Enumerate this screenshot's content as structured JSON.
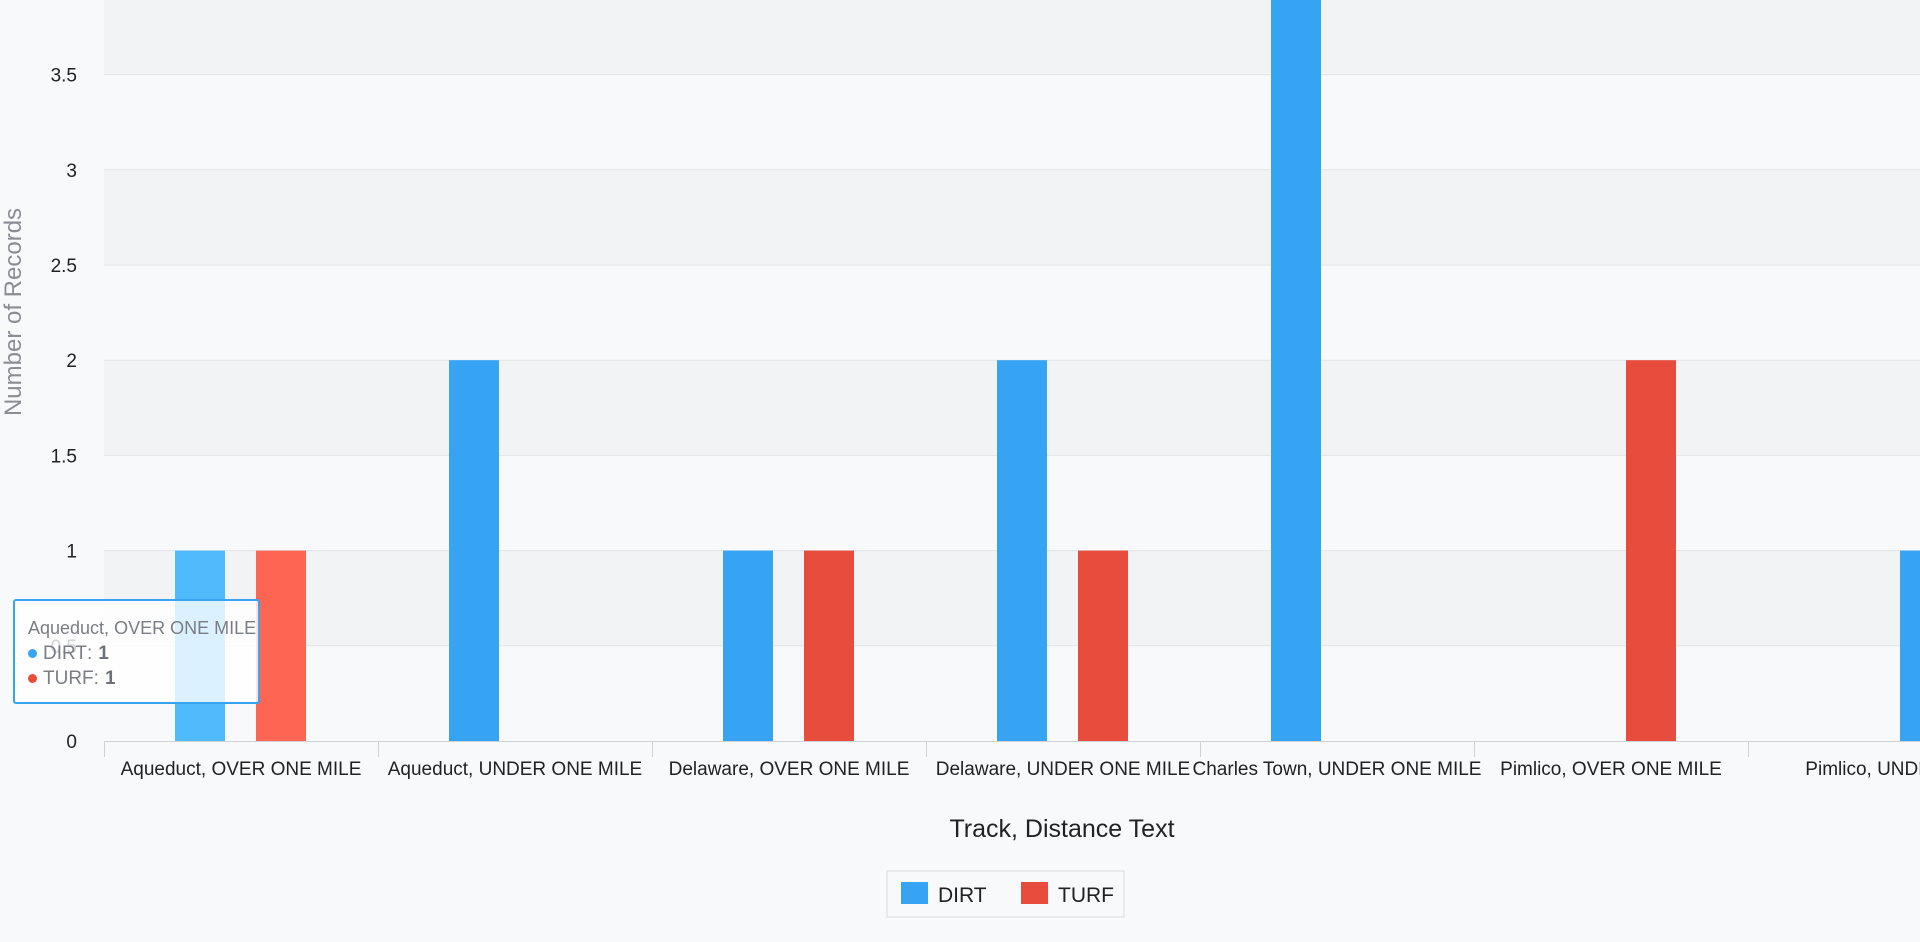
{
  "chart_data": {
    "type": "bar",
    "title": "",
    "xlabel": "Track, Distance Text",
    "ylabel": "Number of Records",
    "ylim": [
      0,
      3.9
    ],
    "y_ticks": [
      "0",
      "0.5",
      "1",
      "1.5",
      "2",
      "2.5",
      "3",
      "3.5"
    ],
    "categories": [
      "Aqueduct, OVER ONE MILE",
      "Aqueduct, UNDER ONE MILE",
      "Delaware, OVER ONE MILE",
      "Delaware, UNDER ONE MILE",
      "Charles Town, UNDER ONE MILE",
      "Pimlico, OVER ONE MILE",
      "Pimlico, UNDER O"
    ],
    "series": [
      {
        "name": "DIRT",
        "color": "#36a4f2",
        "values": [
          1,
          2,
          1,
          2,
          4,
          0,
          1
        ]
      },
      {
        "name": "TURF",
        "color": "#e74c3c",
        "values": [
          1,
          0,
          1,
          1,
          0,
          2,
          0
        ]
      }
    ],
    "grid": true,
    "legend_position": "bottom-center"
  },
  "tooltip": {
    "title": "Aqueduct, OVER ONE MILE",
    "rows": [
      {
        "name": "DIRT",
        "value": "1",
        "color": "#36a4f2"
      },
      {
        "name": "TURF",
        "value": "1",
        "color": "#e74c3c"
      }
    ]
  }
}
